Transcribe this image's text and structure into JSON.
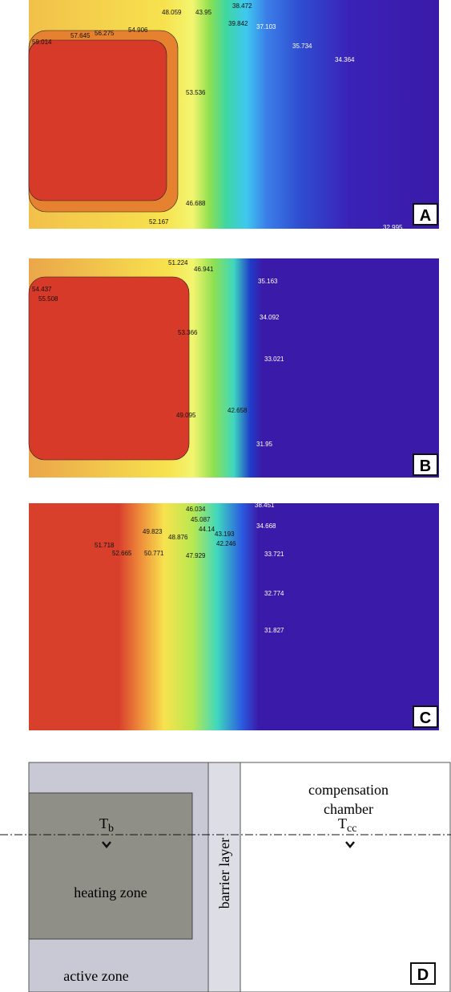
{
  "panels": [
    {
      "label": "A",
      "contour_labels": [
        "59.014",
        "57.645",
        "56.275",
        "54.906",
        "53.536",
        "48.059",
        "43.95",
        "38.472",
        "39.842",
        "37.103",
        "35.734",
        "34.364",
        "52.167",
        "46.688",
        "32.995"
      ]
    },
    {
      "label": "B",
      "contour_labels": [
        "54.437",
        "55.508",
        "53.366",
        "51.224",
        "49.095",
        "46.941",
        "42.658",
        "35.163",
        "34.092",
        "33.021",
        "31.95"
      ]
    },
    {
      "label": "C",
      "contour_labels": [
        "52.665",
        "51.718",
        "50.771",
        "49.823",
        "48.876",
        "47.929",
        "46.034",
        "45.087",
        "44.14",
        "43.193",
        "42.246",
        "38.451",
        "34.668",
        "33.721",
        "32.774",
        "31.827"
      ]
    }
  ],
  "diagram": {
    "label": "D",
    "compensation_chamber": [
      "compensation",
      "chamber"
    ],
    "tb": {
      "symbol": "T",
      "subscript": "b"
    },
    "tcc": {
      "symbol": "T",
      "subscript": "cc"
    },
    "heating_zone": "heating zone",
    "barrier_layer": "barrier layer",
    "active_zone": "active zone"
  }
}
